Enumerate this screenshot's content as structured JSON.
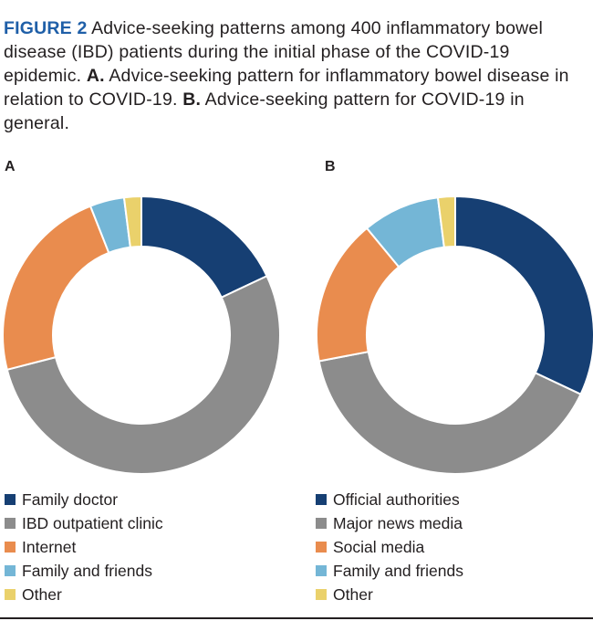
{
  "caption": {
    "figure_label": "FIGURE 2",
    "text_main": " Advice-seeking patterns among 400 inflammatory bowel disease (IBD) patients during the initial phase of the COVID-19 epidemic. ",
    "part_a_label": "A.",
    "part_a_text": " Advice-seeking pattern for inflammatory bowel disease in relation to COVID-19. ",
    "part_b_label": "B.",
    "part_b_text": " Advice-seeking pattern for COVID-19 in general."
  },
  "chart_data": [
    {
      "type": "pie",
      "donut": true,
      "panel": "A",
      "title": "",
      "categories": [
        "Family doctor",
        "IBD outpatient clinic",
        "Internet",
        "Family and friends",
        "Other"
      ],
      "values": [
        18,
        53,
        23,
        4,
        2
      ],
      "colors": [
        "#163f73",
        "#8c8c8c",
        "#e98c4e",
        "#74b6d6",
        "#ead16b"
      ],
      "legend_position": "bottom"
    },
    {
      "type": "pie",
      "donut": true,
      "panel": "B",
      "title": "",
      "categories": [
        "Official authorities",
        "Major news media",
        "Social media",
        "Family and friends",
        "Other"
      ],
      "values": [
        32,
        40,
        17,
        9,
        2
      ],
      "colors": [
        "#163f73",
        "#8c8c8c",
        "#e98c4e",
        "#74b6d6",
        "#ead16b"
      ],
      "legend_position": "bottom"
    }
  ]
}
